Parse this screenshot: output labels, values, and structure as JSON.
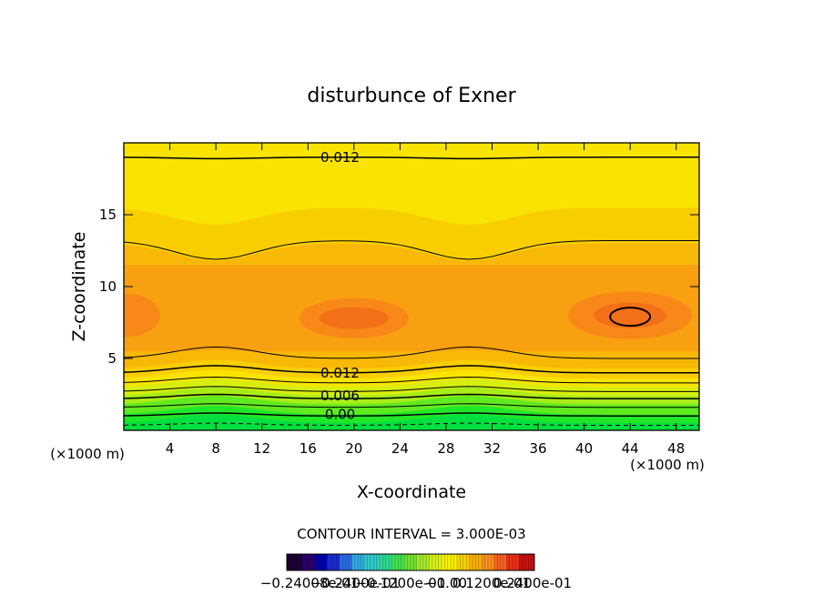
{
  "chart_data": {
    "type": "contour",
    "title": "disturbunce of Exner",
    "xlabel": "X-coordinate",
    "ylabel": "Z-coordinate",
    "x_unit": "(×1000 m)",
    "z_unit": "(×1000 m)",
    "xlim": [
      0,
      50
    ],
    "ylim": [
      0,
      20
    ],
    "x_ticks": [
      4,
      8,
      12,
      16,
      20,
      24,
      28,
      32,
      36,
      40,
      44,
      48
    ],
    "y_ticks": [
      5,
      10,
      15
    ],
    "contour_interval_text": "CONTOUR INTERVAL = 3.000E-03",
    "contour_labels": [
      {
        "text": "0.012",
        "x": 18,
        "z": 19
      },
      {
        "text": "0.012",
        "x": 18,
        "z": 4
      },
      {
        "text": "0.006",
        "x": 18,
        "z": 2.4
      },
      {
        "text": "0.00",
        "x": 18,
        "z": 1.1
      }
    ],
    "colorbar_labels": [
      {
        "text": "−0.24008e-01"
      },
      {
        "text": "−0.2400e-01"
      },
      {
        "text": "−0.1200e-01"
      },
      {
        "text": "−0.00"
      },
      {
        "text": "0.1200e-01"
      },
      {
        "text": "0.2400e-01"
      }
    ],
    "colorbar_colors": [
      "#1a0033",
      "#2a006a",
      "#0000a8",
      "#1a2ad0",
      "#2a6ae0",
      "#30a8e0",
      "#30c8c8",
      "#30d890",
      "#40e050",
      "#70e030",
      "#a8e828",
      "#d8f018",
      "#f8f000",
      "#f8d000",
      "#f8b000",
      "#f89020",
      "#f86020",
      "#e83018",
      "#c81010"
    ],
    "filled_bands": [
      {
        "name": "deep-green",
        "color": "#00e040"
      },
      {
        "name": "green",
        "color": "#20e828"
      },
      {
        "name": "lime",
        "color": "#60ea20"
      },
      {
        "name": "yellow-green",
        "color": "#a8ec18"
      },
      {
        "name": "light-yellow",
        "color": "#d8ee10"
      },
      {
        "name": "yellow",
        "color": "#f8e400"
      },
      {
        "name": "gold",
        "color": "#f8ce00"
      },
      {
        "name": "light-orange",
        "color": "#f8b808"
      },
      {
        "name": "orange",
        "color": "#f8a010"
      },
      {
        "name": "dark-orange",
        "color": "#f88818"
      },
      {
        "name": "red-orange",
        "color": "#f47018"
      }
    ]
  }
}
